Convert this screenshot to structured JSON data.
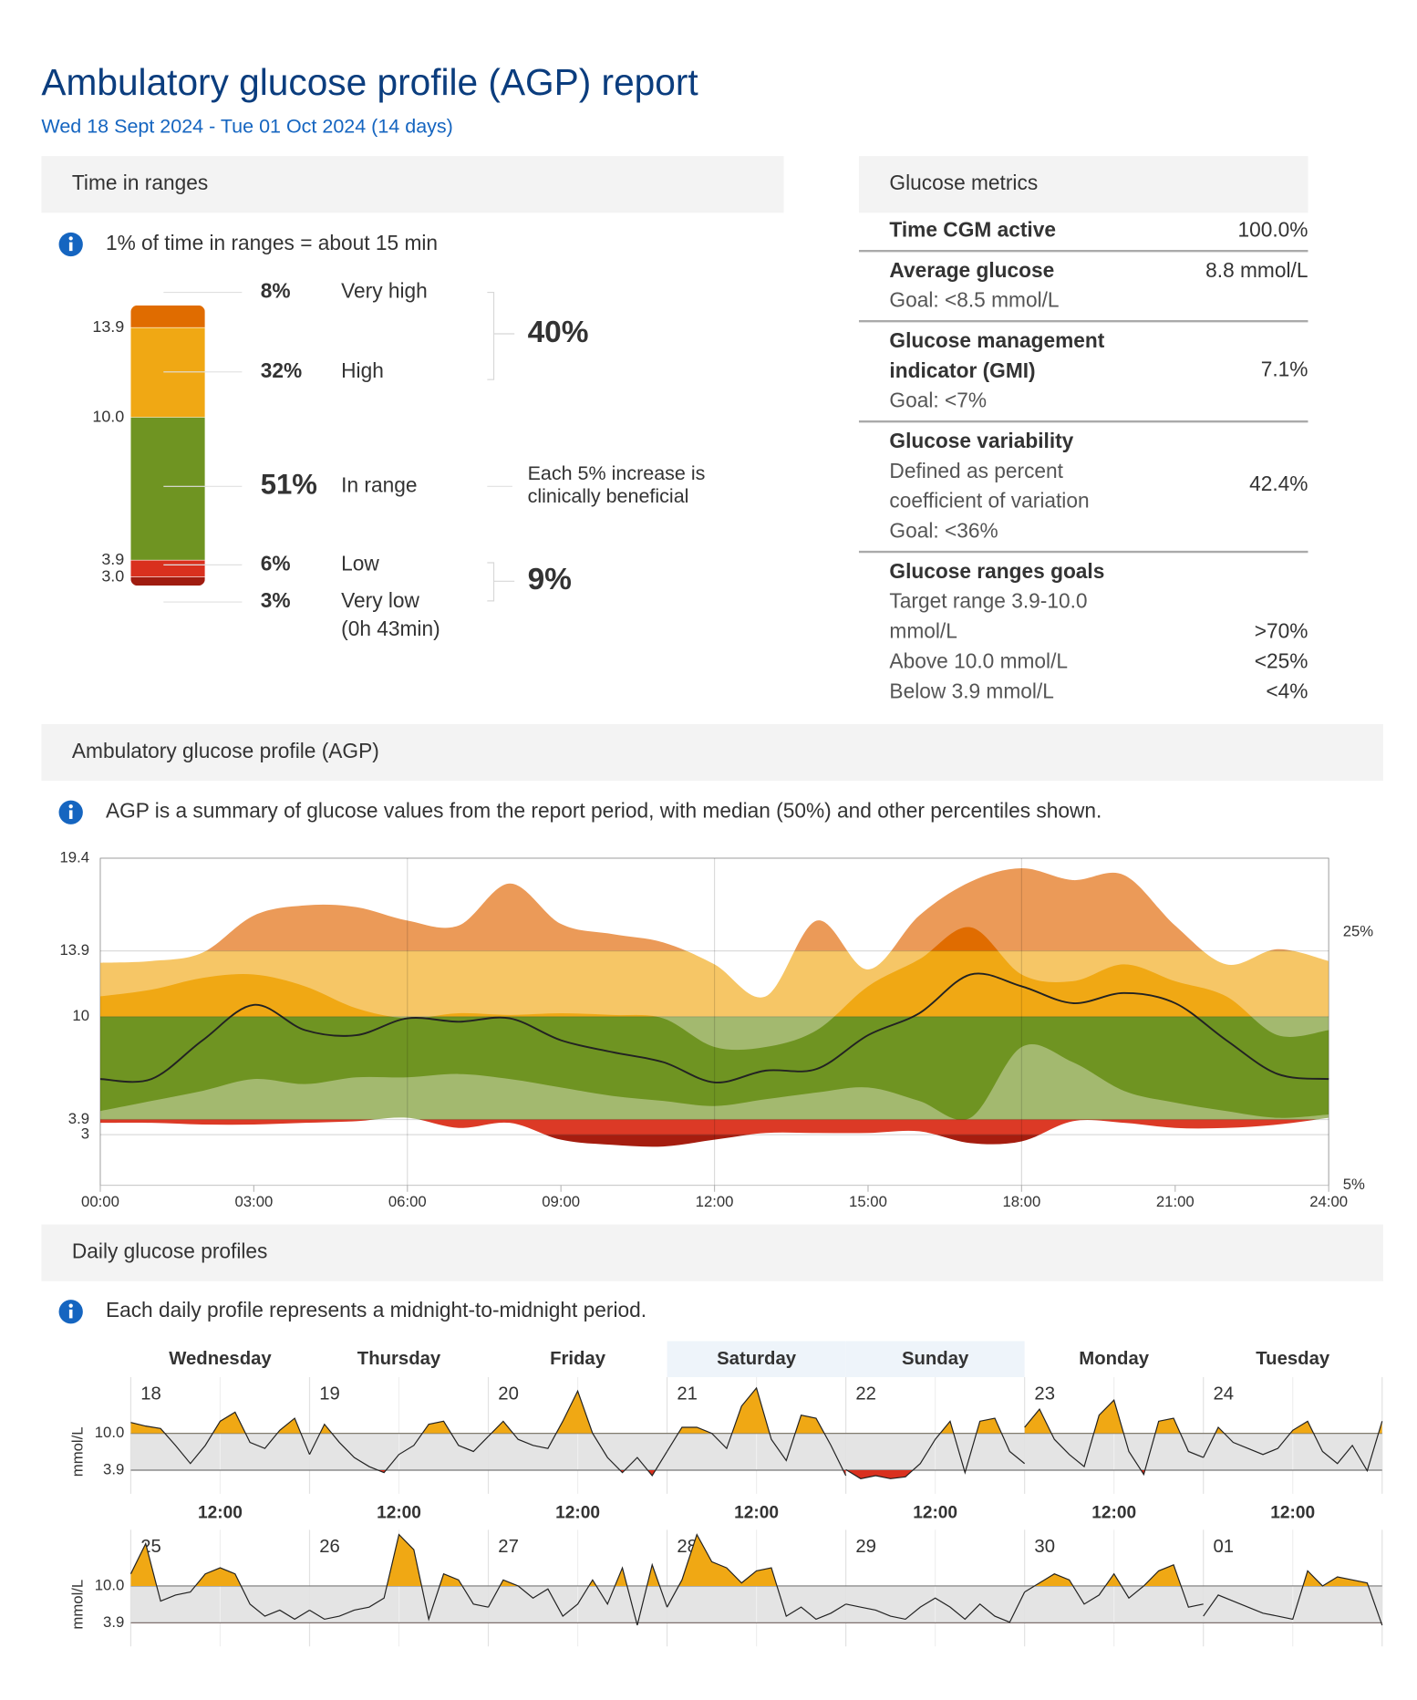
{
  "header": {
    "title": "Ambulatory glucose profile (AGP) report",
    "subtitle": "Wed 18 Sept 2024 - Tue 01 Oct 2024 (14 days)"
  },
  "glucose_metrics": {
    "heading": "Glucose metrics",
    "rows": [
      {
        "label": [
          "Time CGM active"
        ],
        "details": [],
        "value": "100.0%"
      },
      {
        "label": [
          "Average glucose"
        ],
        "details": [
          "Goal: <8.5 mmol/L"
        ],
        "value": "8.8 mmol/L"
      },
      {
        "label": [
          "Glucose management",
          "indicator (GMI)"
        ],
        "details": [
          "Goal: <7%"
        ],
        "value": "7.1%"
      },
      {
        "label": [
          "Glucose variability"
        ],
        "details": [
          "Defined as percent",
          "coefficient of variation",
          "Goal: <36%"
        ],
        "value": "42.4%"
      }
    ],
    "goals": {
      "label": "Glucose ranges goals",
      "items": [
        {
          "label": [
            "Target range 3.9-10.0",
            "mmol/L"
          ],
          "value": ">70%"
        },
        {
          "label": [
            "Above 10.0 mmol/L"
          ],
          "value": "<25%"
        },
        {
          "label": [
            "Below 3.9 mmol/L"
          ],
          "value": "<4%"
        }
      ]
    }
  },
  "chart_data": [
    {
      "type": "stacked-bar",
      "title": "Time in ranges",
      "info": "1% of time in ranges = about 15 min",
      "series": [
        {
          "name": "Very high",
          "color": "#e06c00",
          "values": [
            8
          ],
          "value_labels": [
            "8%"
          ]
        },
        {
          "name": "High",
          "color": "#f0a814",
          "values": [
            32
          ],
          "value_labels": [
            "32%"
          ]
        },
        {
          "name": "In range",
          "color": "#6f9422",
          "values": [
            51
          ],
          "value_labels": [
            "51%"
          ]
        },
        {
          "name": "Low",
          "color": "#d9301e",
          "values": [
            6
          ],
          "value_labels": [
            "6%"
          ]
        },
        {
          "name": "Very low",
          "color": "#a01c10",
          "values": [
            3
          ],
          "value_labels": [
            "3%"
          ]
        }
      ],
      "boundary_labels": [
        "13.9",
        "10.0",
        "3.9",
        "3.0"
      ],
      "very_low_time": "(0h 43min)",
      "group_labels": [
        "40%",
        "9%"
      ],
      "note": [
        "Each 5% increase is",
        "clinically beneficial"
      ]
    },
    {
      "type": "agp",
      "title": "Ambulatory glucose profile (AGP)",
      "info": "AGP is a summary of glucose values from the report period, with median (50%) and other percentiles shown.",
      "x": [
        0,
        1,
        2,
        3,
        4,
        5,
        6,
        7,
        8,
        9,
        10,
        11,
        12,
        13,
        14,
        15,
        16,
        17,
        18,
        19,
        20,
        21,
        22,
        23,
        24
      ],
      "xlim": [
        0,
        24
      ],
      "xticks": [
        {
          "value": 0,
          "label": "00:00"
        },
        {
          "value": 3,
          "label": "03:00"
        },
        {
          "value": 6,
          "label": "06:00"
        },
        {
          "value": 9,
          "label": "09:00"
        },
        {
          "value": 12,
          "label": "12:00"
        },
        {
          "value": 15,
          "label": "15:00"
        },
        {
          "value": 18,
          "label": "18:00"
        },
        {
          "value": 21,
          "label": "21:00"
        },
        {
          "value": 24,
          "label": "24:00"
        }
      ],
      "ylim": [
        0,
        19.4
      ],
      "yticks": [
        3,
        3.9,
        10,
        13.9,
        19.4
      ],
      "series": [
        {
          "values": [
            3.7,
            3.7,
            3.6,
            3.6,
            3.7,
            3.8,
            4.0,
            3.4,
            3.7,
            2.7,
            2.4,
            2.3,
            2.7,
            3.1,
            3.1,
            3.1,
            3.2,
            2.5,
            2.6,
            3.8,
            3.7,
            3.4,
            3.4,
            3.6,
            4.0
          ]
        },
        {
          "values": [
            4.4,
            5.0,
            5.6,
            6.3,
            6.0,
            6.4,
            6.4,
            6.6,
            6.3,
            5.8,
            5.3,
            5.0,
            4.7,
            5.1,
            5.5,
            5.8,
            5.0,
            4.0,
            8.2,
            7.3,
            5.6,
            4.9,
            4.4,
            4.0,
            4.2
          ]
        },
        {
          "values": [
            6.3,
            6.3,
            8.6,
            10.7,
            9.2,
            8.9,
            9.9,
            9.7,
            9.9,
            8.6,
            7.9,
            7.3,
            6.1,
            6.8,
            6.9,
            8.9,
            10.2,
            12.5,
            11.8,
            10.8,
            11.4,
            10.8,
            8.6,
            6.6,
            6.3
          ]
        },
        {
          "values": [
            11.2,
            11.6,
            12.3,
            12.5,
            11.8,
            10.5,
            9.9,
            10.2,
            10.1,
            10.2,
            10.1,
            9.9,
            8.2,
            8.2,
            9.2,
            11.8,
            13.4,
            15.3,
            12.5,
            12.1,
            13.1,
            12.1,
            11.2,
            8.9,
            9.2
          ]
        },
        {
          "values": [
            13.2,
            13.3,
            13.8,
            16.0,
            16.6,
            16.5,
            15.7,
            15.4,
            17.9,
            15.5,
            14.9,
            14.4,
            13.1,
            11.2,
            15.7,
            12.8,
            16.0,
            18.0,
            18.8,
            18.1,
            18.4,
            15.4,
            13.1,
            14.0,
            13.3
          ]
        }
      ],
      "side_labels": [
        "25%",
        "5%"
      ],
      "thresholds": [
        13.9,
        10,
        3.9,
        3
      ],
      "outer_colors": [
        "#eb9a58",
        "#f6c666",
        "#a3b96f",
        "#dc3a26",
        "#a51d0f"
      ],
      "inner_colors": [
        "#e06c00",
        "#f0a814",
        "#6f9422",
        "#d9301e",
        "#9e1a0e"
      ],
      "median_color": "#222222"
    },
    {
      "type": "daily",
      "title": "Daily glucose profiles",
      "info": "Each daily profile represents a midnight-to-midnight period.",
      "weekdays": [
        "Wednesday",
        "Thursday",
        "Friday",
        "Saturday",
        "Sunday",
        "Monday",
        "Tuesday"
      ],
      "x": [
        0,
        2,
        4,
        6,
        8,
        10,
        12,
        14,
        16,
        18,
        20,
        22,
        24
      ],
      "xlim": [
        0,
        24
      ],
      "xticks": [
        {
          "value": 12,
          "label": "12:00"
        }
      ],
      "ylim": [
        0,
        19.3
      ],
      "yticks": [
        {
          "value": 10,
          "label": "10.0"
        },
        3.9
      ],
      "y_label": "mmol/L",
      "above_color": "#f0a814",
      "below_color": "#d9301e",
      "band_color": "#e4e4e4",
      "series": [
        {
          "name": "18",
          "values": [
            11.8,
            11.2,
            10.8,
            8.0,
            5.0,
            8.0,
            12.0,
            13.5,
            8.5,
            7.5,
            10.5,
            12.5,
            6.5
          ]
        },
        {
          "name": "19",
          "values": [
            6.5,
            11.5,
            8.5,
            6.0,
            4.5,
            3.5,
            6.5,
            8.0,
            11.5,
            12.0,
            8.0,
            7.0,
            9.5
          ]
        },
        {
          "name": "20",
          "values": [
            9.5,
            12.0,
            9.0,
            8.0,
            7.5,
            12.0,
            17.0,
            10.0,
            6.0,
            3.5,
            6.0,
            3.0,
            7.0
          ]
        },
        {
          "name": "21",
          "values": [
            7.0,
            11.0,
            11.0,
            10.0,
            7.5,
            14.5,
            17.5,
            9.0,
            5.5,
            13.0,
            12.5,
            8.0,
            3.0
          ]
        },
        {
          "name": "22",
          "values": [
            4.0,
            2.5,
            3.0,
            2.5,
            2.8,
            5.0,
            9.0,
            12.0,
            3.5,
            12.0,
            12.5,
            7.0,
            5.0
          ]
        },
        {
          "name": "23",
          "values": [
            11.0,
            14.0,
            9.0,
            6.5,
            4.5,
            13.0,
            15.5,
            7.0,
            3.2,
            12.0,
            12.5,
            7.0,
            6.0
          ]
        },
        {
          "name": "24",
          "values": [
            6.0,
            11.0,
            8.5,
            7.5,
            6.5,
            7.5,
            10.5,
            12.0,
            7.0,
            5.0,
            8.0,
            3.8,
            12.0
          ]
        },
        {
          "name": "25",
          "values": [
            12.0,
            17.0,
            7.5,
            8.5,
            9.0,
            12.0,
            13.0,
            12.0,
            7.0,
            5.0,
            6.0,
            4.5,
            6.0
          ]
        },
        {
          "name": "26",
          "values": [
            6.0,
            4.5,
            5.0,
            6.0,
            6.5,
            8.0,
            18.5,
            16.0,
            4.5,
            12.0,
            11.0,
            7.0,
            6.5
          ]
        },
        {
          "name": "27",
          "values": [
            6.5,
            11.0,
            10.0,
            8.0,
            9.5,
            5.0,
            7.0,
            11.0,
            7.0,
            13.0,
            3.5,
            13.5,
            6.5
          ]
        },
        {
          "name": "28",
          "values": [
            6.5,
            11.0,
            18.5,
            14.0,
            13.0,
            10.5,
            12.5,
            13.0,
            5.0,
            6.5,
            4.5,
            5.5,
            7.0
          ]
        },
        {
          "name": "29",
          "values": [
            7.0,
            6.5,
            6.0,
            5.0,
            4.5,
            6.5,
            8.0,
            6.5,
            4.5,
            7.0,
            5.0,
            4.0,
            9.0
          ]
        },
        {
          "name": "30",
          "values": [
            9.0,
            10.5,
            12.0,
            11.0,
            7.0,
            8.5,
            12.0,
            8.0,
            10.0,
            12.5,
            13.5,
            6.5,
            7.0
          ]
        },
        {
          "name": "01",
          "values": [
            5.0,
            8.5,
            7.5,
            6.5,
            5.5,
            5.0,
            4.5,
            12.5,
            10.0,
            11.5,
            11.0,
            10.5,
            3.5
          ]
        }
      ]
    }
  ]
}
